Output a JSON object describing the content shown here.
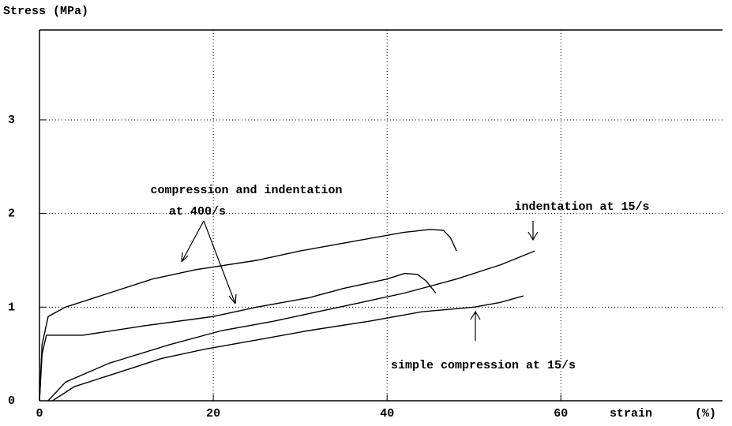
{
  "chart_data": {
    "type": "line",
    "y_label": "Stress (MPa)",
    "x_label": "strain",
    "x_unit": "(%)",
    "xlim": [
      0,
      78.6
    ],
    "ylim": [
      0,
      3.96
    ],
    "xticks": [
      0,
      20,
      40,
      60
    ],
    "yticks": [
      0,
      1,
      2,
      3
    ],
    "grid": true,
    "annotations": [
      "compression and indentation",
      "at 400/s",
      "indentation at 15/s",
      "simple compression at 15/s"
    ],
    "series": [
      {
        "color": "#000000",
        "x": [
          0,
          0.3,
          1,
          3,
          8,
          13,
          18,
          25,
          30,
          36,
          42,
          45,
          46.5,
          47.3,
          48
        ],
        "values": [
          0,
          0.6,
          0.9,
          1.0,
          1.15,
          1.3,
          1.4,
          1.5,
          1.6,
          1.7,
          1.8,
          1.83,
          1.82,
          1.74,
          1.6
        ]
      },
      {
        "color": "#000000",
        "x": [
          0,
          0.3,
          0.8,
          5,
          12,
          20,
          25,
          31,
          35,
          40,
          42,
          43.5,
          44.5,
          45.6
        ],
        "values": [
          0,
          0.5,
          0.7,
          0.7,
          0.8,
          0.9,
          1.0,
          1.1,
          1.2,
          1.3,
          1.36,
          1.35,
          1.28,
          1.15
        ]
      },
      {
        "color": "#000000",
        "x": [
          1,
          3,
          8,
          15,
          21,
          27,
          32,
          37,
          42,
          48,
          53,
          57
        ],
        "values": [
          0,
          0.2,
          0.4,
          0.6,
          0.75,
          0.85,
          0.95,
          1.05,
          1.15,
          1.3,
          1.45,
          1.6
        ]
      },
      {
        "color": "#000000",
        "x": [
          1.5,
          4,
          9,
          14,
          19,
          25,
          31,
          38,
          44,
          50,
          53,
          55.7
        ],
        "values": [
          0,
          0.15,
          0.3,
          0.45,
          0.55,
          0.65,
          0.75,
          0.85,
          0.95,
          1.0,
          1.05,
          1.12
        ]
      }
    ]
  }
}
